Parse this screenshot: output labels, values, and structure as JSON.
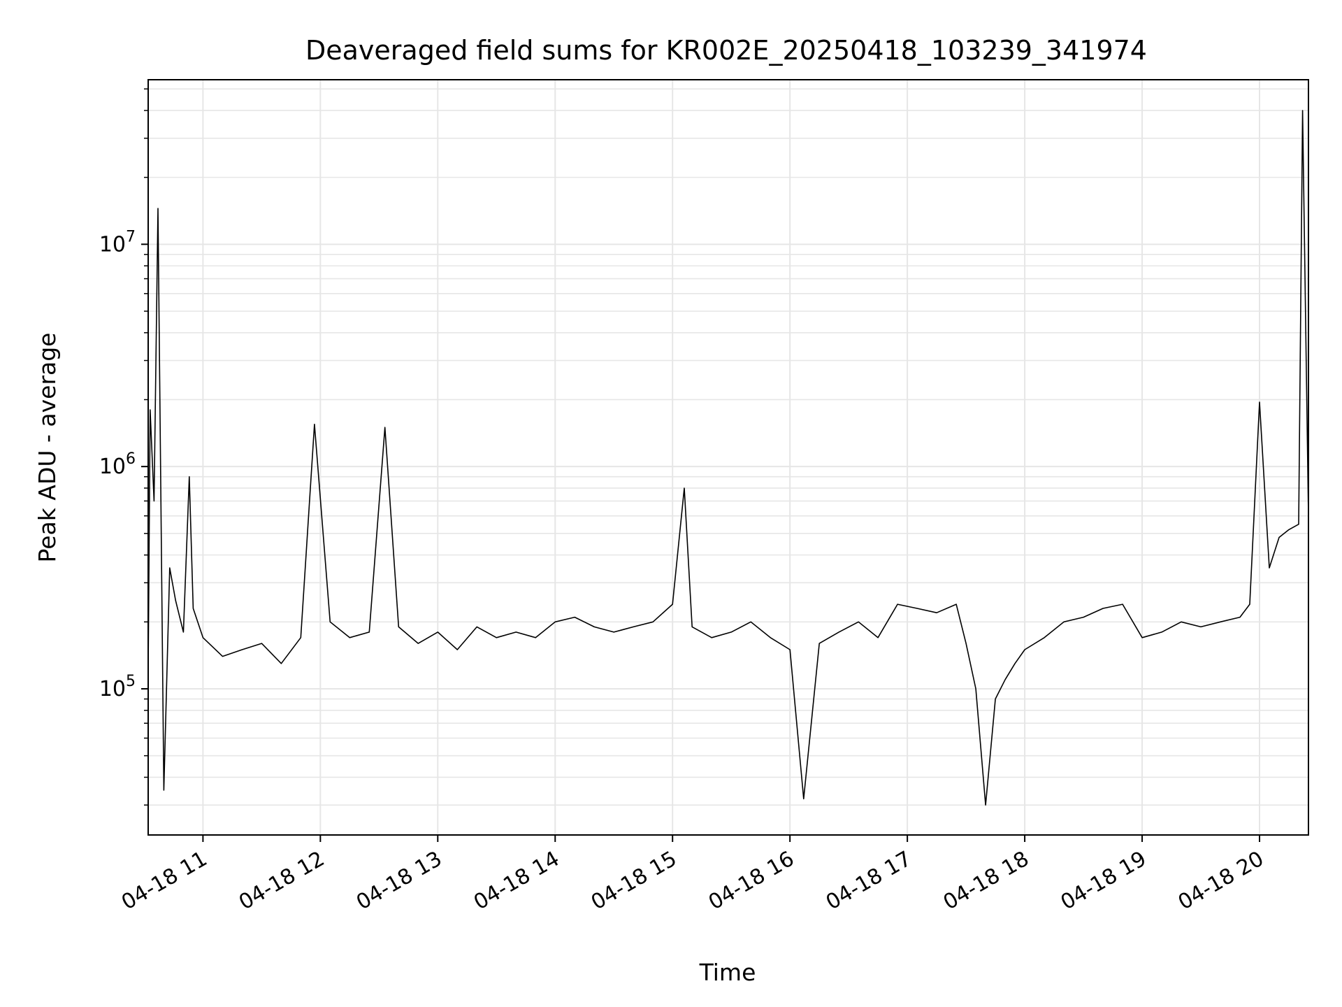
{
  "chart_data": {
    "type": "line",
    "title": "Deaveraged field sums for KR002E_20250418_103239_341974",
    "xlabel": "Time",
    "ylabel": "Peak ADU - average",
    "y_scale": "log",
    "ylim": [
      22000,
      55000000
    ],
    "xlim": [
      "04-18 10:32",
      "04-18 20:25"
    ],
    "x_ticks": [
      "04-18 11",
      "04-18 12",
      "04-18 13",
      "04-18 14",
      "04-18 15",
      "04-18 16",
      "04-18 17",
      "04-18 18",
      "04-18 19",
      "04-18 20"
    ],
    "y_ticks": [
      {
        "value": 100000,
        "base": "10",
        "exp": "5"
      },
      {
        "value": 1000000,
        "base": "10",
        "exp": "6"
      },
      {
        "value": 10000000,
        "base": "10",
        "exp": "7"
      }
    ],
    "grid": true,
    "line_color": "#000000",
    "grid_color": "#e6e6e6",
    "series": [
      {
        "x": [
          "04-18 10:32",
          "04-18 10:33",
          "04-18 10:35",
          "04-18 10:37",
          "04-18 10:40",
          "04-18 10:43",
          "04-18 10:46",
          "04-18 10:50",
          "04-18 10:53",
          "04-18 10:55",
          "04-18 11:00",
          "04-18 11:10",
          "04-18 11:20",
          "04-18 11:30",
          "04-18 11:40",
          "04-18 11:50",
          "04-18 11:57",
          "04-18 12:05",
          "04-18 12:15",
          "04-18 12:25",
          "04-18 12:33",
          "04-18 12:40",
          "04-18 12:50",
          "04-18 13:00",
          "04-18 13:10",
          "04-18 13:20",
          "04-18 13:30",
          "04-18 13:40",
          "04-18 13:50",
          "04-18 14:00",
          "04-18 14:10",
          "04-18 14:20",
          "04-18 14:30",
          "04-18 14:40",
          "04-18 14:50",
          "04-18 15:00",
          "04-18 15:06",
          "04-18 15:10",
          "04-18 15:20",
          "04-18 15:30",
          "04-18 15:40",
          "04-18 15:50",
          "04-18 16:00",
          "04-18 16:07",
          "04-18 16:15",
          "04-18 16:25",
          "04-18 16:35",
          "04-18 16:45",
          "04-18 16:55",
          "04-18 17:05",
          "04-18 17:15",
          "04-18 17:25",
          "04-18 17:30",
          "04-18 17:35",
          "04-18 17:40",
          "04-18 17:45",
          "04-18 17:50",
          "04-18 17:55",
          "04-18 18:00",
          "04-18 18:10",
          "04-18 18:20",
          "04-18 18:30",
          "04-18 18:40",
          "04-18 18:50",
          "04-18 19:00",
          "04-18 19:10",
          "04-18 19:20",
          "04-18 19:30",
          "04-18 19:40",
          "04-18 19:50",
          "04-18 19:55",
          "04-18 20:00",
          "04-18 20:05",
          "04-18 20:10",
          "04-18 20:15",
          "04-18 20:20",
          "04-18 20:22",
          "04-18 20:25"
        ],
        "y": [
          120000,
          1800000,
          700000,
          14500000,
          35000,
          350000,
          250000,
          180000,
          900000,
          230000,
          170000,
          140000,
          150000,
          160000,
          130000,
          170000,
          1550000,
          200000,
          170000,
          180000,
          1500000,
          190000,
          160000,
          180000,
          150000,
          190000,
          170000,
          180000,
          170000,
          200000,
          210000,
          190000,
          180000,
          190000,
          200000,
          240000,
          800000,
          190000,
          170000,
          180000,
          200000,
          170000,
          150000,
          32000,
          160000,
          180000,
          200000,
          170000,
          240000,
          230000,
          220000,
          240000,
          160000,
          100000,
          30000,
          90000,
          110000,
          130000,
          150000,
          170000,
          200000,
          210000,
          230000,
          240000,
          170000,
          180000,
          200000,
          190000,
          200000,
          210000,
          240000,
          1950000,
          350000,
          480000,
          520000,
          550000,
          40000000,
          600000
        ]
      }
    ]
  }
}
